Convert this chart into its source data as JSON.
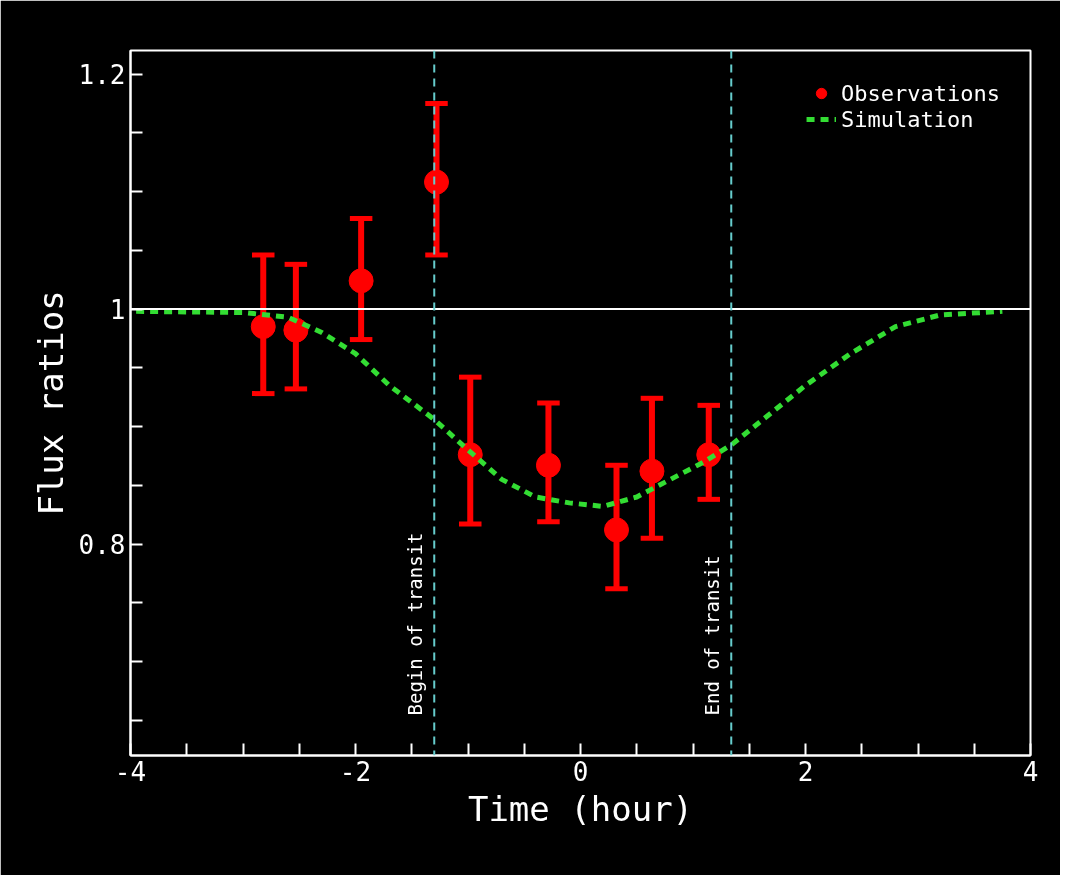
{
  "chart_data": {
    "type": "scatter",
    "xlabel": "Time (hour)",
    "ylabel": "Flux ratios",
    "xlim": [
      -4,
      4
    ],
    "ylim": [
      0.62,
      1.22
    ],
    "xticks": [
      -4,
      {
        "value": -3.5,
        "label": null
      },
      {
        "value": -3,
        "label": null
      },
      {
        "value": -2.5,
        "label": null
      },
      -2,
      {
        "value": -1.5,
        "label": null
      },
      {
        "value": -1,
        "label": null
      },
      {
        "value": -0.5,
        "label": null
      },
      0,
      {
        "value": 0.5,
        "label": null
      },
      {
        "value": 1,
        "label": null
      },
      {
        "value": 1.5,
        "label": null
      },
      2,
      {
        "value": 2.5,
        "label": null
      },
      {
        "value": 3,
        "label": null
      },
      {
        "value": 3.5,
        "label": null
      },
      4
    ],
    "yticks": [
      {
        "value": 0.65,
        "label": null
      },
      {
        "value": 0.7,
        "label": null
      },
      {
        "value": 0.75,
        "label": null
      },
      0.8,
      {
        "value": 0.85,
        "label": null
      },
      {
        "value": 0.9,
        "label": null
      },
      {
        "value": 0.95,
        "label": null
      },
      1,
      {
        "value": 1.05,
        "label": null
      },
      {
        "value": 1.1,
        "label": null
      },
      {
        "value": 1.15,
        "label": null
      },
      1.2
    ],
    "grid": false,
    "legend": "top right",
    "series": [
      {
        "name": "Observations",
        "marker": "circle",
        "color": "#ff0000",
        "x": [
          -2.82,
          -2.53,
          -1.95,
          -1.28,
          -0.98,
          -0.285,
          0.32,
          0.635,
          1.14
        ],
        "values": [
          0.985,
          0.982,
          1.024,
          1.108,
          0.876,
          0.867,
          0.812,
          0.862,
          0.876
        ],
        "errors": [
          [
            0.928,
            1.046
          ],
          [
            0.932,
            1.038
          ],
          [
            0.974,
            1.077
          ],
          [
            1.046,
            1.175
          ],
          [
            0.817,
            0.942
          ],
          [
            0.819,
            0.92
          ],
          [
            0.762,
            0.867
          ],
          [
            0.805,
            0.924
          ],
          [
            0.838,
            0.918
          ]
        ]
      },
      {
        "name": "Simulation",
        "type": "line",
        "line_style": "dashed",
        "color": "#33dd33",
        "x": [
          -3.95,
          -3,
          -2.6,
          -2.3,
          -2,
          -1.7,
          -1.3,
          -1,
          -0.7,
          -0.4,
          -0.1,
          0.2,
          0.5,
          0.8,
          1.1,
          1.35,
          1.7,
          2,
          2.4,
          2.8,
          3.2,
          3.75
        ],
        "values": [
          0.998,
          0.997,
          0.993,
          0.98,
          0.962,
          0.935,
          0.906,
          0.88,
          0.855,
          0.84,
          0.835,
          0.832,
          0.84,
          0.855,
          0.87,
          0.885,
          0.912,
          0.935,
          0.962,
          0.985,
          0.995,
          0.998
        ]
      }
    ],
    "ref_lines": [
      {
        "axis": "y",
        "value": 1,
        "color": "#ffffff",
        "line_style": "solid"
      },
      {
        "axis": "x",
        "value": -1.3,
        "label": "Begin of transit",
        "color": "#66cccc",
        "line_style": "dashed"
      },
      {
        "axis": "x",
        "value": 1.34,
        "label": "End of transit",
        "color": "#66cccc",
        "line_style": "dashed"
      }
    ]
  }
}
